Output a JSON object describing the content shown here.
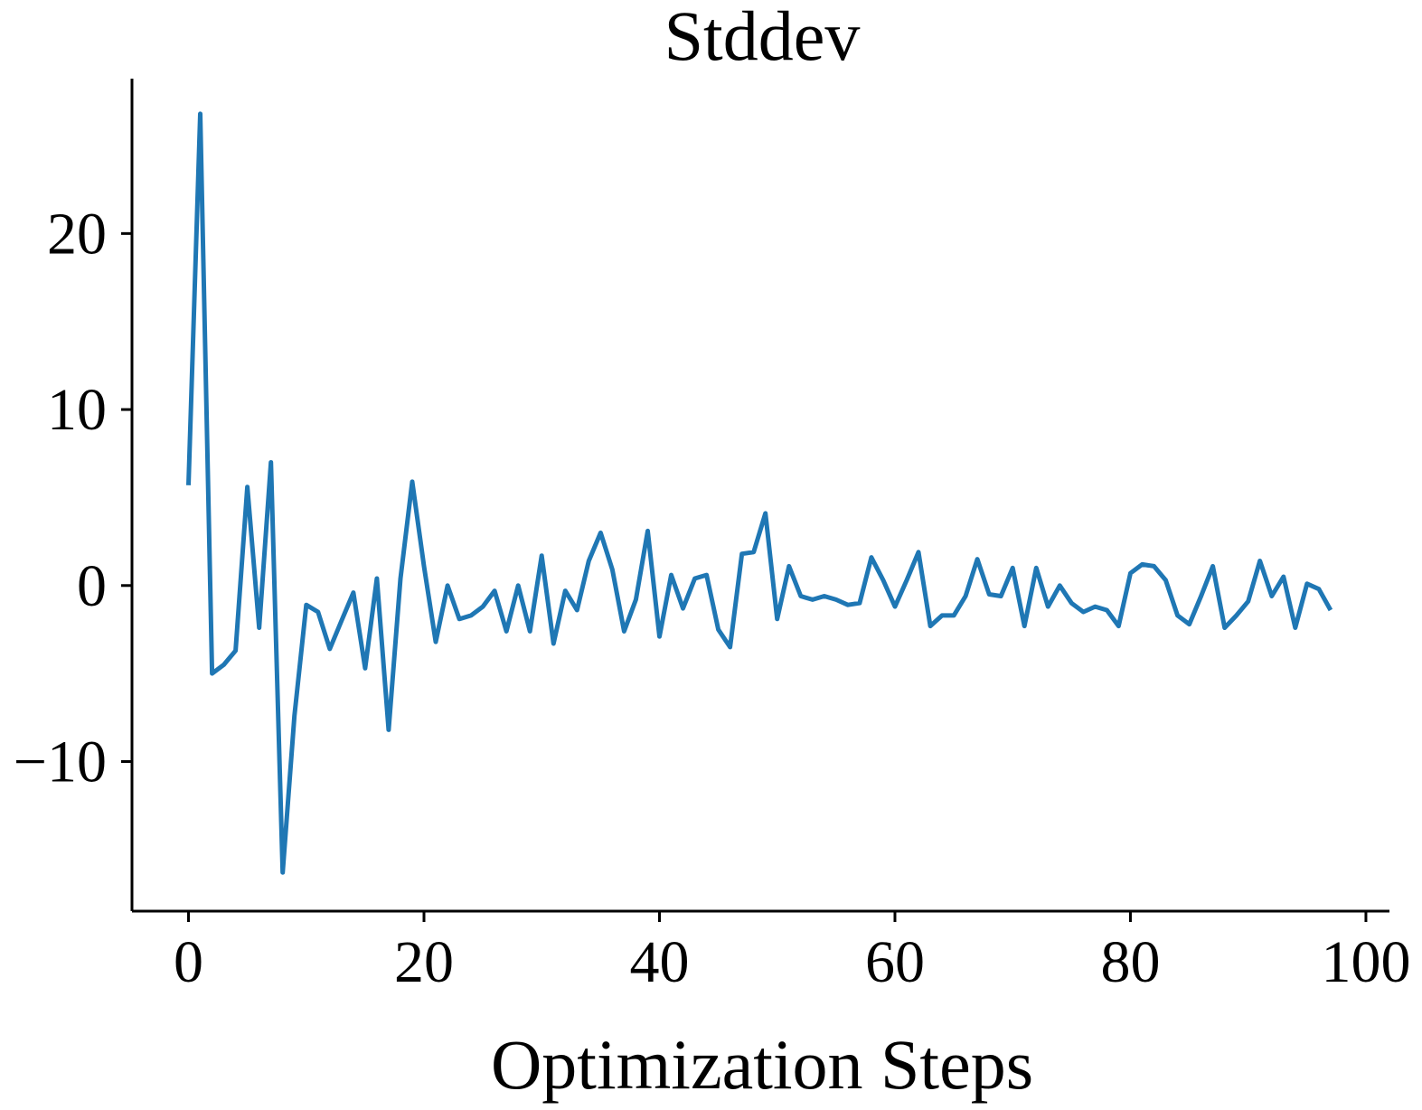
{
  "chart_data": {
    "type": "line",
    "title": "Stddev",
    "xlabel": "Optimization Steps",
    "ylabel": "",
    "xlim": [
      -4.8,
      102
    ],
    "ylim": [
      -18.5,
      28.8
    ],
    "xticks": [
      0,
      20,
      40,
      60,
      80,
      100
    ],
    "yticks": [
      -10,
      0,
      10,
      20
    ],
    "xtick_labels": [
      "0",
      "20",
      "40",
      "60",
      "80",
      "100"
    ],
    "ytick_labels": [
      "−10",
      "0",
      "10",
      "20"
    ],
    "grid": false,
    "series": [
      {
        "color": "#1f77b4",
        "x": [
          0,
          1,
          2,
          3,
          4,
          5,
          6,
          7,
          8,
          9,
          10,
          11,
          12,
          13,
          14,
          15,
          16,
          17,
          18,
          19,
          20,
          21,
          22,
          23,
          24,
          25,
          26,
          27,
          28,
          29,
          30,
          31,
          32,
          33,
          34,
          35,
          36,
          37,
          38,
          39,
          40,
          41,
          42,
          43,
          44,
          45,
          46,
          47,
          48,
          49,
          50,
          51,
          52,
          53,
          54,
          55,
          56,
          57,
          58,
          59,
          60,
          61,
          62,
          63,
          64,
          65,
          66,
          67,
          68,
          69,
          70,
          71,
          72,
          73,
          74,
          75,
          76,
          77,
          78,
          79,
          80,
          81,
          82,
          83,
          84,
          85,
          86,
          87,
          88,
          89,
          90,
          91,
          92,
          93,
          94,
          95,
          96,
          97
        ],
        "y": [
          5.7,
          26.8,
          -5.0,
          -4.5,
          -3.7,
          5.6,
          -2.4,
          7.0,
          -16.3,
          -7.4,
          -1.1,
          -1.5,
          -3.6,
          -2.0,
          -0.4,
          -4.7,
          0.4,
          -8.2,
          0.4,
          5.9,
          1.1,
          -3.2,
          0.0,
          -1.9,
          -1.7,
          -1.2,
          -0.3,
          -2.6,
          0.0,
          -2.6,
          1.7,
          -3.3,
          -0.3,
          -1.4,
          1.4,
          3.0,
          0.9,
          -2.6,
          -0.8,
          3.1,
          -2.9,
          0.6,
          -1.3,
          0.4,
          0.6,
          -2.5,
          -3.5,
          1.8,
          1.9,
          4.1,
          -1.9,
          1.1,
          -0.6,
          -0.8,
          -0.6,
          -0.8,
          -1.1,
          -1.0,
          1.6,
          0.3,
          -1.2,
          0.3,
          1.9,
          -2.3,
          -1.7,
          -1.7,
          -0.6,
          1.5,
          -0.5,
          -0.6,
          1.0,
          -2.3,
          1.0,
          -1.2,
          0.0,
          -1.0,
          -1.5,
          -1.2,
          -1.4,
          -2.3,
          0.7,
          1.2,
          1.1,
          0.3,
          -1.7,
          -2.2,
          -0.6,
          1.1,
          -2.4,
          -1.7,
          -0.9,
          1.4,
          -0.6,
          0.5,
          -2.4,
          0.1,
          -0.2,
          -1.4
        ]
      }
    ]
  }
}
